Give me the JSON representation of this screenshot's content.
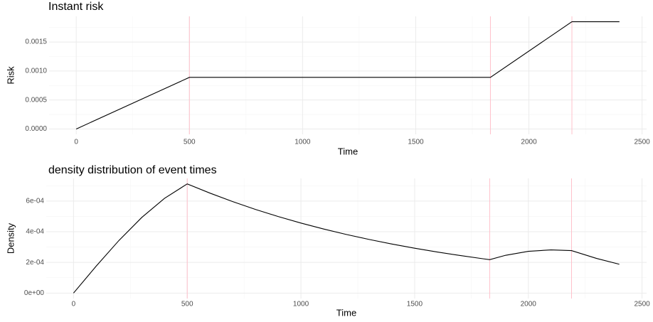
{
  "chart_data": [
    {
      "type": "line",
      "title": "Instant risk",
      "x_label": "Time",
      "y_label": "Risk",
      "color": "#000000",
      "x": [
        0,
        500,
        1830,
        2190,
        2400
      ],
      "values": [
        0,
        0.00089,
        0.00089,
        0.00185,
        0.00185
      ],
      "xlim": [
        -120,
        2520
      ],
      "ylim": [
        -9.25e-05,
        0.0019425
      ],
      "xticks": [
        0,
        500,
        1000,
        1500,
        2000,
        2500
      ],
      "yticks": [
        {
          "value": 0,
          "label": "0.0000"
        },
        {
          "value": 0.0005,
          "label": "0.0005"
        },
        {
          "value": 0.001,
          "label": "0.0010"
        },
        {
          "value": 0.0015,
          "label": "0.0015"
        }
      ],
      "xminor": [
        250,
        750,
        1250,
        1750,
        2250
      ],
      "yminor": [
        0.00025,
        0.00075,
        0.00125,
        0.00175
      ],
      "vlines": [
        500,
        1830,
        2190
      ],
      "vline_color": "#ffc0cb",
      "grid": true
    },
    {
      "type": "line",
      "title": "density distribution of event times",
      "x_label": "Time",
      "y_label": "Density",
      "color": "#000000",
      "x": [
        0,
        100,
        200,
        300,
        400,
        500,
        600,
        700,
        800,
        900,
        1000,
        1100,
        1200,
        1300,
        1400,
        1500,
        1600,
        1700,
        1800,
        1830,
        1900,
        2000,
        2100,
        2190,
        2300,
        2400
      ],
      "values": [
        0,
        0.0001764,
        0.0003435,
        0.0004929,
        0.0006175,
        0.000712,
        0.0006517,
        0.0005963,
        0.0005455,
        0.000499,
        0.0004566,
        0.0004177,
        0.0003821,
        0.0003496,
        0.0003198,
        0.0002926,
        0.0002676,
        0.0002449,
        0.000224,
        0.000218,
        0.0002464,
        0.0002722,
        0.0002816,
        0.000277,
        0.0002259,
        0.000188
      ],
      "xlim": [
        -120,
        2520
      ],
      "ylim": [
        -3.56e-05,
        0.0007476
      ],
      "xticks": [
        0,
        500,
        1000,
        1500,
        2000,
        2500
      ],
      "yticks": [
        {
          "value": 0,
          "label": "0e+00"
        },
        {
          "value": 0.0002,
          "label": "2e-04"
        },
        {
          "value": 0.0004,
          "label": "4e-04"
        },
        {
          "value": 0.0006,
          "label": "6e-04"
        }
      ],
      "xminor": [
        250,
        750,
        1250,
        1750,
        2250
      ],
      "yminor": [
        0.0001,
        0.0003,
        0.0005,
        0.0007
      ],
      "vlines": [
        500,
        1830,
        2190
      ],
      "vline_color": "#ffc0cb",
      "grid": true
    }
  ]
}
